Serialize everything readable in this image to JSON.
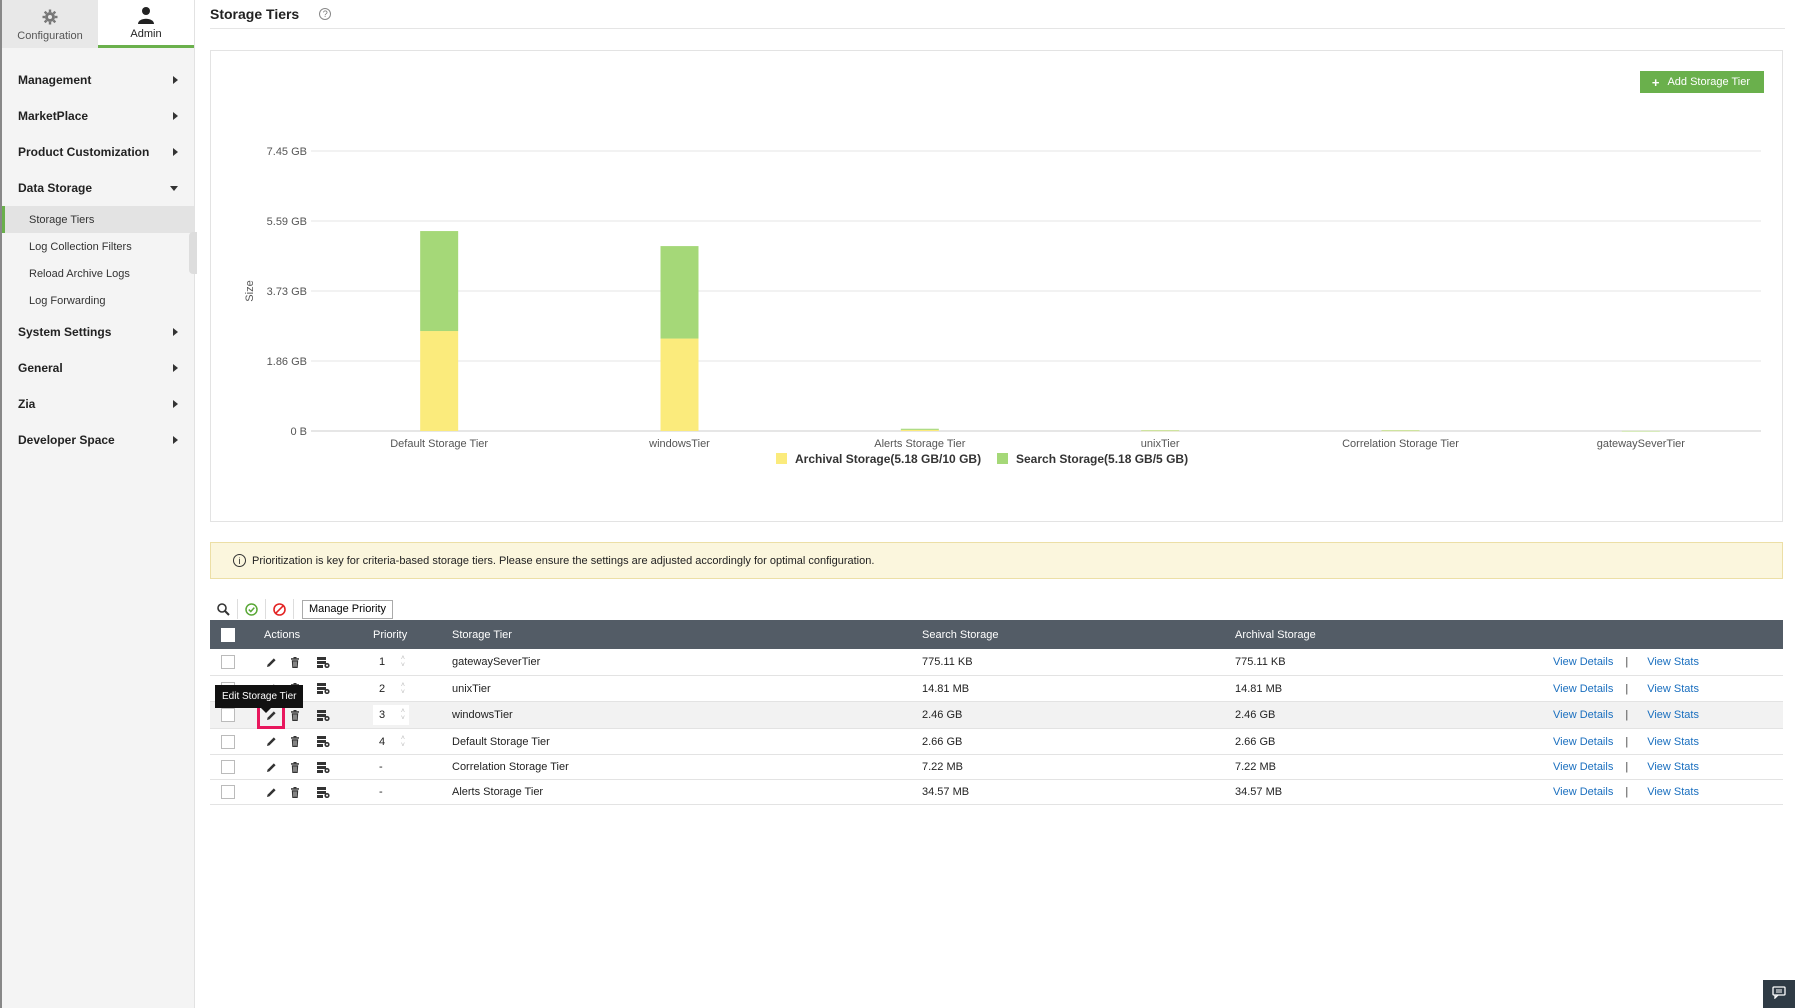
{
  "sidebar": {
    "tabs": [
      {
        "label": "Configuration",
        "icon": "gear-icon"
      },
      {
        "label": "Admin",
        "icon": "user-icon"
      }
    ],
    "menu": {
      "management": "Management",
      "marketplace": "MarketPlace",
      "product_customization": "Product Customization",
      "data_storage": "Data Storage",
      "storage_tiers": "Storage Tiers",
      "log_collection_filters": "Log Collection Filters",
      "reload_archive_logs": "Reload Archive Logs",
      "log_forwarding": "Log Forwarding",
      "system_settings": "System Settings",
      "general": "General",
      "zia": "Zia",
      "developer_space": "Developer Space"
    }
  },
  "header": {
    "title": "Storage Tiers",
    "help": "?"
  },
  "add_button": {
    "label": "Add Storage Tier",
    "plus": "+"
  },
  "chart_data": {
    "type": "bar",
    "stacked": true,
    "ylabel": "Size",
    "ytick_labels": [
      "0 B",
      "1.86 GB",
      "3.73 GB",
      "5.59 GB",
      "7.45 GB"
    ],
    "ylim": [
      0,
      7.45
    ],
    "categories": [
      "Default Storage Tier",
      "windowsTier",
      "Alerts Storage Tier",
      "unixTier",
      "Correlation Storage Tier",
      "gatewaySeverTier"
    ],
    "series": [
      {
        "name": "Archival Storage(5.18 GB/10 GB)",
        "color": "#fbeb7c",
        "values": [
          2.66,
          2.46,
          0.03,
          0.01,
          0.01,
          0.001
        ]
      },
      {
        "name": "Search Storage(5.18 GB/5 GB)",
        "color": "#a5d878",
        "values": [
          2.66,
          2.46,
          0.03,
          0.01,
          0.01,
          0.001
        ]
      }
    ],
    "legend_position": "bottom-center",
    "grid": true
  },
  "notice": {
    "icon": "i",
    "text": "Prioritization is key for criteria-based storage tiers. Please ensure the settings are adjusted accordingly for optimal configuration."
  },
  "toolbar": {
    "manage_priority": "Manage Priority"
  },
  "table": {
    "headers": {
      "actions": "Actions",
      "priority": "Priority",
      "tier": "Storage Tier",
      "search": "Search Storage",
      "archival": "Archival Storage"
    },
    "view_details": "View Details",
    "view_stats": "View Stats",
    "sep": "|",
    "spin_up": "˄",
    "spin_down": "˅",
    "rows": [
      {
        "priority": "1",
        "tier": "gatewaySeverTier",
        "search": "775.11 KB",
        "archival": "775.11 KB"
      },
      {
        "priority": "2",
        "tier": "unixTier",
        "search": "14.81 MB",
        "archival": "14.81 MB"
      },
      {
        "priority": "3",
        "tier": "windowsTier",
        "search": "2.46 GB",
        "archival": "2.46 GB"
      },
      {
        "priority": "4",
        "tier": "Default Storage Tier",
        "search": "2.66 GB",
        "archival": "2.66 GB"
      },
      {
        "priority": "-",
        "tier": "Correlation Storage Tier",
        "search": "7.22 MB",
        "archival": "7.22 MB"
      },
      {
        "priority": "-",
        "tier": "Alerts Storage Tier",
        "search": "34.57 MB",
        "archival": "34.57 MB"
      }
    ]
  },
  "tooltip": "Edit Storage Tier"
}
